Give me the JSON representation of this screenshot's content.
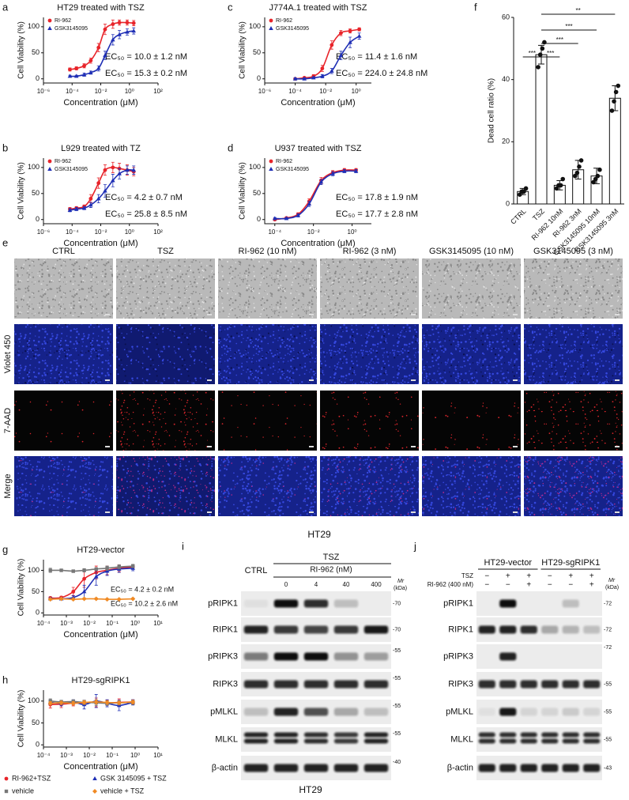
{
  "panels": {
    "a": {
      "letter": "a",
      "type": "line",
      "title": "HT29 treated with TSZ",
      "ylabel": "Cell Viability (%)",
      "xlabel": "Concentration (μM)",
      "xscale": "log",
      "legend": "upper left",
      "xlim": [
        1e-06,
        100
      ],
      "xticks": [
        {
          "value": 1e-06,
          "label": "10⁻⁶"
        },
        {
          "value": 0.0001,
          "label": "10⁻⁴"
        },
        {
          "value": 0.01,
          "label": "10⁻²"
        },
        {
          "value": 1,
          "label": "10⁰"
        },
        {
          "value": 100,
          "label": "10²"
        }
      ],
      "ylim": [
        -8,
        118
      ],
      "yticks": [
        0,
        50,
        100
      ],
      "x": [
        7e-05,
        0.0002,
        0.0007,
        0.002,
        0.007,
        0.02,
        0.07,
        0.2,
        0.7,
        2
      ],
      "series": [
        {
          "name": "RI-962",
          "color": "#e8242a",
          "marker": "circle",
          "values": [
            18,
            20,
            25,
            35,
            60,
            95,
            105,
            108,
            108,
            107
          ],
          "errors": [
            3,
            3,
            4,
            5,
            8,
            10,
            8,
            5,
            5,
            5
          ],
          "annotation": "EC₅₀ = 10.0 ± 1.2 nM"
        },
        {
          "name": "GSK3145095",
          "color": "#1f2fb5",
          "marker": "triangle",
          "values": [
            5,
            5,
            8,
            12,
            20,
            45,
            75,
            85,
            90,
            92
          ],
          "errors": [
            2,
            2,
            3,
            3,
            5,
            8,
            10,
            8,
            6,
            6
          ],
          "annotation": "EC₅₀ = 15.3 ± 0.2 nM"
        }
      ]
    },
    "b": {
      "letter": "b",
      "type": "line",
      "title": "L929 treated with TZ",
      "ylabel": "Cell Viability (%)",
      "xlabel": "Concentration (μM)",
      "xscale": "log",
      "legend": "upper left",
      "xlim": [
        1e-06,
        100
      ],
      "xticks": [
        {
          "value": 1e-06,
          "label": "10⁻⁶"
        },
        {
          "value": 0.0001,
          "label": "10⁻⁴"
        },
        {
          "value": 0.01,
          "label": "10⁻²"
        },
        {
          "value": 1,
          "label": "10⁰"
        },
        {
          "value": 100,
          "label": "10²"
        }
      ],
      "ylim": [
        -8,
        118
      ],
      "yticks": [
        0,
        50,
        100
      ],
      "x": [
        7e-05,
        0.0002,
        0.0007,
        0.002,
        0.007,
        0.02,
        0.07,
        0.2,
        0.7,
        2
      ],
      "series": [
        {
          "name": "RI-962",
          "color": "#e8242a",
          "marker": "circle",
          "values": [
            20,
            22,
            25,
            40,
            70,
            95,
            100,
            98,
            95,
            92
          ],
          "errors": [
            3,
            3,
            3,
            8,
            10,
            10,
            10,
            10,
            10,
            8
          ],
          "annotation": "EC₅₀ = 4.2 ± 0.7 nM"
        },
        {
          "name": "GSK3145095",
          "color": "#1f2fb5",
          "marker": "triangle",
          "values": [
            18,
            20,
            22,
            28,
            40,
            55,
            75,
            88,
            95,
            95
          ],
          "errors": [
            3,
            3,
            3,
            5,
            8,
            12,
            12,
            10,
            8,
            8
          ],
          "annotation": "EC₅₀ = 25.8 ± 8.5 nM"
        }
      ]
    },
    "c": {
      "letter": "c",
      "type": "line",
      "title": "J774A.1 treated with TSZ",
      "ylabel": "Cell Viability (%)",
      "xlabel": "Concentration (μM)",
      "xscale": "log",
      "legend": "upper left",
      "xlim": [
        1e-06,
        10
      ],
      "xticks": [
        {
          "value": 1e-06,
          "label": "10⁻⁶"
        },
        {
          "value": 0.0001,
          "label": "10⁻⁴"
        },
        {
          "value": 0.01,
          "label": "10⁻²"
        },
        {
          "value": 1,
          "label": "10⁰"
        }
      ],
      "ylim": [
        -8,
        118
      ],
      "yticks": [
        0,
        50,
        100
      ],
      "x": [
        0.0001,
        0.0004,
        0.0016,
        0.006,
        0.025,
        0.1,
        0.4,
        1.6
      ],
      "series": [
        {
          "name": "RI-962",
          "color": "#e8242a",
          "marker": "circle",
          "values": [
            0,
            2,
            5,
            20,
            65,
            88,
            92,
            95
          ],
          "errors": [
            2,
            2,
            3,
            6,
            8,
            5,
            4,
            3
          ],
          "annotation": "EC₅₀ = 11.4 ± 1.6 nM"
        },
        {
          "name": "GSK3145095",
          "color": "#1f2fb5",
          "marker": "triangle",
          "values": [
            0,
            0,
            2,
            5,
            15,
            45,
            70,
            82
          ],
          "errors": [
            2,
            2,
            2,
            3,
            5,
            8,
            10,
            6
          ],
          "annotation": "EC₅₀ = 224.0 ± 24.8 nM"
        }
      ]
    },
    "d": {
      "letter": "d",
      "type": "line",
      "title": "U937 treated with TSZ",
      "ylabel": "Cell Viability (%)",
      "xlabel": "Concentration (μM)",
      "xscale": "log",
      "legend": "upper left",
      "xlim": [
        3e-05,
        10
      ],
      "xticks": [
        {
          "value": 0.0001,
          "label": "10⁻⁴"
        },
        {
          "value": 0.01,
          "label": "10⁻²"
        },
        {
          "value": 1,
          "label": "10⁰"
        }
      ],
      "ylim": [
        -8,
        118
      ],
      "yticks": [
        0,
        50,
        100
      ],
      "x": [
        0.0001,
        0.0004,
        0.0016,
        0.006,
        0.025,
        0.1,
        0.4,
        1.6
      ],
      "series": [
        {
          "name": "RI-962",
          "color": "#e8242a",
          "marker": "circle",
          "values": [
            0,
            3,
            10,
            35,
            75,
            90,
            95,
            95
          ],
          "errors": [
            2,
            2,
            3,
            5,
            6,
            4,
            3,
            3
          ],
          "annotation": "EC₅₀ = 17.8 ± 1.9 nM"
        },
        {
          "name": "GSK3145095",
          "color": "#1f2fb5",
          "marker": "triangle",
          "values": [
            2,
            2,
            8,
            30,
            72,
            88,
            93,
            93
          ],
          "errors": [
            2,
            2,
            3,
            5,
            5,
            4,
            3,
            3
          ],
          "annotation": "EC₅₀ = 17.7 ± 2.8 nM"
        }
      ]
    },
    "f": {
      "letter": "f",
      "type": "bar",
      "ylabel": "Dead cell ratio (%)",
      "color": "#ffffff",
      "categories": [
        "CTRL",
        "TSZ",
        "RI-962 10nM",
        "RI-962 3nM",
        "GSK3145095 10nM",
        "GSK3145095 3nM"
      ],
      "values": [
        4,
        48,
        6,
        11,
        9,
        34
      ],
      "errors": [
        1,
        3,
        1.5,
        3,
        2.5,
        4
      ],
      "points": [
        [
          3,
          4,
          4,
          5
        ],
        [
          44,
          48,
          50,
          52
        ],
        [
          5,
          6,
          6,
          8
        ],
        [
          9,
          10,
          12,
          14
        ],
        [
          7,
          8,
          9,
          11
        ],
        [
          30,
          33,
          36,
          38
        ]
      ],
      "ylim": [
        0,
        60
      ],
      "yticks": [
        0,
        20,
        40,
        60
      ],
      "significance": [
        "***",
        "***",
        "***",
        "***",
        "**"
      ]
    },
    "e": {
      "letter": "e",
      "columns": [
        "CTRL",
        "TSZ",
        "RI-962 (10 nM)",
        "RI-962 (3 nM)",
        "GSK3145095 (10 nM)",
        "GSK3145095 (3 nM)"
      ],
      "rows": [
        "Violet 450",
        "7-AAD",
        "Merge"
      ],
      "caption": "HT29"
    },
    "g": {
      "letter": "g",
      "type": "line",
      "title": "HT29-vector",
      "ylabel": "Cell Viability (%)",
      "xlabel": "Concentration (μM)",
      "xscale": "log",
      "xlim": [
        0.0001,
        10
      ],
      "xticks": [
        {
          "value": 0.0001,
          "label": "10⁻⁴"
        },
        {
          "value": 0.001,
          "label": "10⁻³"
        },
        {
          "value": 0.01,
          "label": "10⁻²"
        },
        {
          "value": 0.1,
          "label": "10⁻¹"
        },
        {
          "value": 1,
          "label": "10⁰"
        },
        {
          "value": 10,
          "label": "10¹"
        }
      ],
      "ylim": [
        -5,
        125
      ],
      "yticks": [
        0,
        50,
        100
      ],
      "x": [
        0.0002,
        0.0006,
        0.002,
        0.006,
        0.02,
        0.06,
        0.2,
        0.8
      ],
      "series": [
        {
          "color": "#e8242a",
          "marker": "circle",
          "values": [
            35,
            36,
            50,
            80,
            95,
            100,
            105,
            108
          ],
          "errors": [
            3,
            3,
            10,
            20,
            15,
            10,
            8,
            5
          ],
          "annotation": "EC₅₀ = 4.2 ± 0.2 nM"
        },
        {
          "color": "#1f2fb5",
          "marker": "triangle",
          "values": [
            33,
            33,
            36,
            50,
            85,
            98,
            103,
            105
          ],
          "errors": [
            3,
            3,
            5,
            15,
            20,
            10,
            8,
            6
          ],
          "annotation": "EC₅₀ = 10.2 ± 2.6 nM"
        },
        {
          "color": "#777777",
          "marker": "square",
          "values": [
            100,
            100,
            98,
            100,
            103,
            105,
            108,
            110
          ],
          "errors": [
            5,
            3,
            3,
            4,
            3,
            5,
            5,
            4
          ]
        },
        {
          "color": "#f08a24",
          "marker": "diamond",
          "values": [
            32,
            33,
            32,
            33,
            33,
            32,
            32,
            33
          ],
          "errors": [
            2,
            2,
            2,
            2,
            2,
            2,
            2,
            2
          ]
        }
      ]
    },
    "h": {
      "letter": "h",
      "type": "line",
      "title": "HT29-sgRIPK1",
      "ylabel": "Cell Viability (%)",
      "xlabel": "Concentration (μM)",
      "xscale": "log",
      "legend": "bottom",
      "xlim": [
        0.0001,
        10
      ],
      "xticks": [
        {
          "value": 0.0001,
          "label": "10⁻⁴"
        },
        {
          "value": 0.001,
          "label": "10⁻³"
        },
        {
          "value": 0.01,
          "label": "10⁻²"
        },
        {
          "value": 0.1,
          "label": "10⁻¹"
        },
        {
          "value": 1,
          "label": "10⁰"
        },
        {
          "value": 10,
          "label": "10¹"
        }
      ],
      "ylim": [
        -5,
        125
      ],
      "yticks": [
        0,
        50,
        100
      ],
      "x": [
        0.0002,
        0.0006,
        0.002,
        0.006,
        0.02,
        0.06,
        0.2,
        0.8
      ],
      "series": [
        {
          "name": "RI-962+TSZ",
          "color": "#e8242a",
          "marker": "circle",
          "values": [
            92,
            93,
            95,
            96,
            97,
            96,
            97,
            98
          ],
          "errors": [
            8,
            8,
            6,
            5,
            10,
            6,
            8,
            5
          ]
        },
        {
          "name": "GSK 3145095 + TSZ",
          "color": "#1f2fb5",
          "marker": "triangle",
          "values": [
            97,
            95,
            98,
            92,
            100,
            95,
            90,
            97
          ],
          "errors": [
            5,
            6,
            5,
            10,
            15,
            8,
            12,
            6
          ]
        },
        {
          "name": "vehicle",
          "color": "#777777",
          "marker": "square",
          "values": [
            100,
            98,
            99,
            97,
            96,
            95,
            96,
            97
          ],
          "errors": [
            5,
            4,
            4,
            5,
            6,
            5,
            5,
            5
          ]
        },
        {
          "name": "vehicle + TSZ",
          "color": "#f08a24",
          "marker": "diamond",
          "values": [
            95,
            96,
            95,
            97,
            98,
            97,
            96,
            98
          ],
          "errors": [
            4,
            4,
            4,
            4,
            5,
            4,
            4,
            4
          ]
        }
      ]
    },
    "i": {
      "letter": "i",
      "control": "CTRL",
      "treatment": "TSZ",
      "compound": "RI-962 (nM)",
      "lanes": [
        "0",
        "4",
        "40",
        "400"
      ],
      "mw": "Mr",
      "unit": "(kDa)",
      "rows": [
        {
          "label": "pRIPK1",
          "marker": "-70"
        },
        {
          "label": "RIPK1",
          "marker": "-70"
        },
        {
          "label": "pRIPK3",
          "marker": "-55"
        },
        {
          "label": "RIPK3",
          "marker": "-55"
        },
        {
          "label": "pMLKL",
          "marker": "-55"
        },
        {
          "label": "MLKL",
          "marker": "-55"
        },
        {
          "label": "β-actin",
          "marker": "-40"
        }
      ],
      "caption": "HT29"
    },
    "j": {
      "letter": "j",
      "groups": [
        "HT29-vector",
        "HT29-sgRIPK1"
      ],
      "conditions": [
        {
          "label": "TSZ",
          "signs": [
            "−",
            "+",
            "+",
            "−",
            "+",
            "+"
          ]
        },
        {
          "label": "RI-962 (400 nM)",
          "signs": [
            "−",
            "−",
            "+",
            "−",
            "−",
            "+"
          ]
        }
      ],
      "mw": "Mr",
      "unit": "(kDa)",
      "rows": [
        {
          "label": "pRIPK1",
          "marker": "-72"
        },
        {
          "label": "RIPK1",
          "marker": "-72"
        },
        {
          "label": "pRIPK3",
          "marker": "-72"
        },
        {
          "label": "RIPK3",
          "marker": "-55"
        },
        {
          "label": "pMLKL",
          "marker": "-55"
        },
        {
          "label": "MLKL",
          "marker": "-55"
        },
        {
          "label": "β-actin",
          "marker": "-43"
        }
      ]
    }
  }
}
